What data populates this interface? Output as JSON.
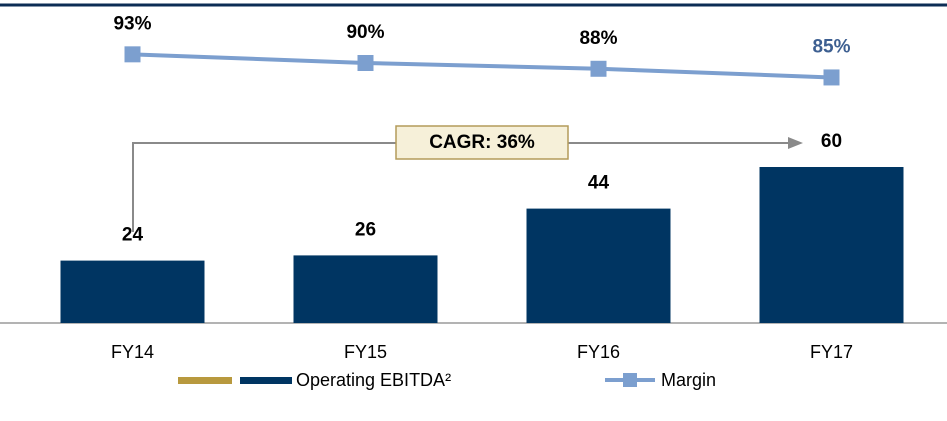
{
  "chart_data": {
    "type": "bar",
    "categories": [
      "FY14",
      "FY15",
      "FY16",
      "FY17"
    ],
    "series": [
      {
        "name": "Operating EBITDA²",
        "type": "bar",
        "color": "#003562",
        "values": [
          24,
          26,
          44,
          60
        ]
      },
      {
        "name": "Margin",
        "type": "line",
        "axis": "y2",
        "color": "#7c9fcf",
        "values": [
          93,
          90,
          88,
          85
        ],
        "value_labels": [
          "93%",
          "90%",
          "88%",
          "85%"
        ],
        "value_label_colors": [
          "#000000",
          "#000000",
          "#000000",
          "#3d5f91"
        ]
      }
    ],
    "ylim": [
      0,
      120
    ],
    "y2lim": [
      0,
      108
    ],
    "annotation": "CAGR: 36%",
    "legend": "bottom"
  }
}
